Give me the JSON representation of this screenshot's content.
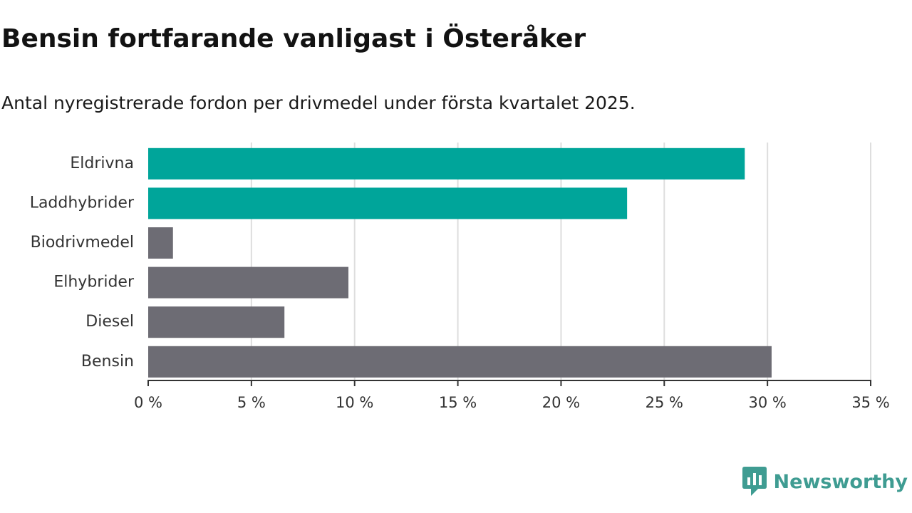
{
  "header": {
    "title": "Bensin fortfarande vanligast i Österåker",
    "subtitle": "Antal nyregistrerade fordon per drivmedel under första kvartalet 2025."
  },
  "brand": {
    "name": "Newsworthy",
    "icon": "newsworthy-logo-icon",
    "color": "#3f9c92"
  },
  "chart_data": {
    "type": "bar",
    "orientation": "horizontal",
    "title": "",
    "xlabel": "",
    "ylabel": "",
    "categories": [
      "Eldrivna",
      "Laddhybrider",
      "Biodrivmedel",
      "Elhybrider",
      "Diesel",
      "Bensin"
    ],
    "values": [
      28.9,
      23.2,
      1.2,
      9.7,
      6.6,
      30.2
    ],
    "bar_colors": [
      "#00a59a",
      "#00a59a",
      "#6d6c74",
      "#6d6c74",
      "#6d6c74",
      "#6d6c74"
    ],
    "xlim": [
      0,
      35
    ],
    "xticks": [
      0,
      5,
      10,
      15,
      20,
      25,
      30,
      35
    ],
    "xtick_labels": [
      "0 %",
      "5 %",
      "10 %",
      "15 %",
      "20 %",
      "25 %",
      "30 %",
      "35 %"
    ],
    "grid": true,
    "legend": "none"
  }
}
